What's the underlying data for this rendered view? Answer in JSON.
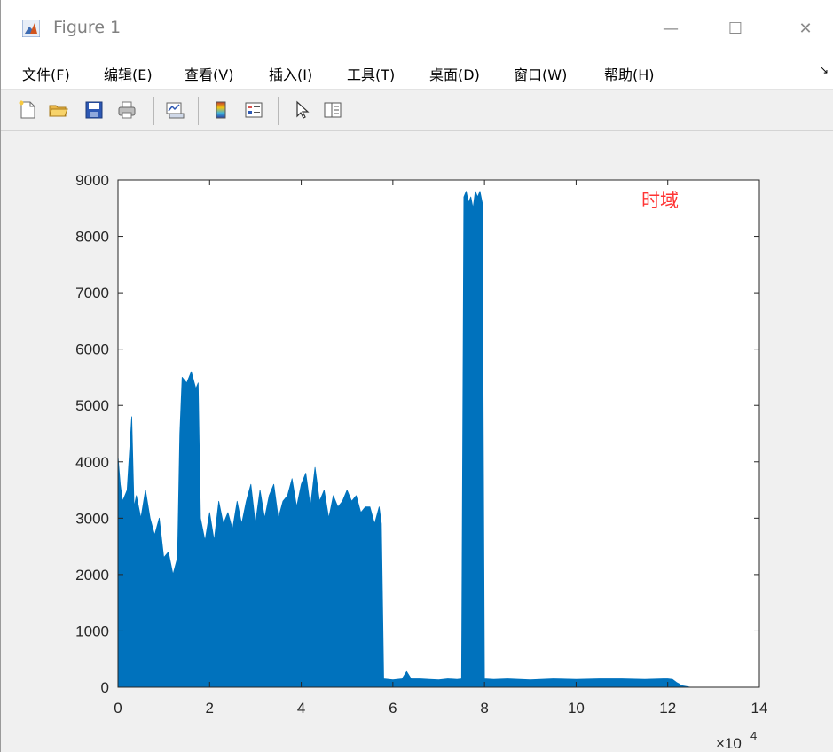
{
  "window": {
    "title": "Figure 1",
    "minimize_glyph": "—",
    "maximize_glyph": "☐",
    "close_glyph": "✕"
  },
  "menubar": {
    "items": [
      "文件(F)",
      "编辑(E)",
      "查看(V)",
      "插入(I)",
      "工具(T)",
      "桌面(D)",
      "窗口(W)",
      "帮助(H)"
    ],
    "more_glyph": "↘"
  },
  "toolbar": {
    "buttons": [
      "new-figure-icon",
      "open-file-icon",
      "save-icon",
      "print-icon",
      "link-plot-icon",
      "colorbar-icon",
      "legend-icon",
      "pointer-arrow-icon",
      "property-inspector-icon"
    ]
  },
  "colors": {
    "series": "#0072bd",
    "annotation": "#ff3333",
    "axes_bg": "#ffffff",
    "figure_bg": "#f0f0f0"
  },
  "chart_data": {
    "type": "line",
    "title": "",
    "annotation": "时域",
    "xlabel": "",
    "ylabel": "",
    "x_exponent_label": "×10",
    "x_exponent_power": "4",
    "xlim": [
      0,
      140000
    ],
    "ylim": [
      0,
      9000
    ],
    "xticks": [
      0,
      2,
      4,
      6,
      8,
      10,
      12,
      14
    ],
    "yticks": [
      0,
      1000,
      2000,
      3000,
      4000,
      5000,
      6000,
      7000,
      8000,
      9000
    ],
    "grid": false,
    "series": [
      {
        "envelope": {
          "x": [
            0,
            500,
            1000,
            2000,
            3000,
            3500,
            4000,
            5000,
            6000,
            7000,
            8000,
            9000,
            10000,
            11000,
            12000,
            13000,
            13500,
            14000,
            15000,
            16000,
            17000,
            17500,
            18000,
            19000,
            20000,
            21000,
            22000,
            23000,
            24000,
            25000,
            26000,
            27000,
            28000,
            29000,
            30000,
            31000,
            32000,
            33000,
            34000,
            35000,
            36000,
            37000,
            38000,
            39000,
            40000,
            41000,
            42000,
            43000,
            44000,
            45000,
            46000,
            47000,
            48000,
            49000,
            50000,
            51000,
            52000,
            53000,
            54000,
            55000,
            56000,
            57000,
            57500,
            58000,
            60000,
            62000,
            63000,
            64000,
            66000,
            68000,
            70000,
            72000,
            74000,
            75000,
            75500,
            76000,
            76500,
            77000,
            77500,
            78000,
            78500,
            79000,
            79500,
            80000,
            82000,
            85000,
            90000,
            95000,
            100000,
            105000,
            110000,
            115000,
            119000,
            120000,
            121000,
            122000,
            122500,
            123000,
            125000
          ],
          "y": [
            4100,
            3600,
            3300,
            3500,
            4800,
            3200,
            3400,
            3000,
            3500,
            3000,
            2700,
            3000,
            2300,
            2400,
            2000,
            2300,
            4500,
            5500,
            5400,
            5600,
            5300,
            5400,
            3000,
            2600,
            3100,
            2600,
            3300,
            2900,
            3100,
            2800,
            3300,
            2900,
            3300,
            3600,
            2900,
            3500,
            3000,
            3400,
            3600,
            3000,
            3300,
            3400,
            3700,
            3200,
            3600,
            3800,
            3200,
            3900,
            3300,
            3500,
            3000,
            3400,
            3200,
            3300,
            3500,
            3300,
            3400,
            3100,
            3200,
            3200,
            2900,
            3200,
            2900,
            150,
            130,
            150,
            280,
            150,
            150,
            140,
            130,
            150,
            140,
            150,
            8700,
            8800,
            8600,
            8700,
            8500,
            8800,
            8700,
            8800,
            8600,
            150,
            140,
            150,
            130,
            150,
            140,
            150,
            150,
            140,
            150,
            150,
            140,
            80,
            60,
            30,
            0
          ]
        },
        "baseline": 0
      }
    ]
  }
}
